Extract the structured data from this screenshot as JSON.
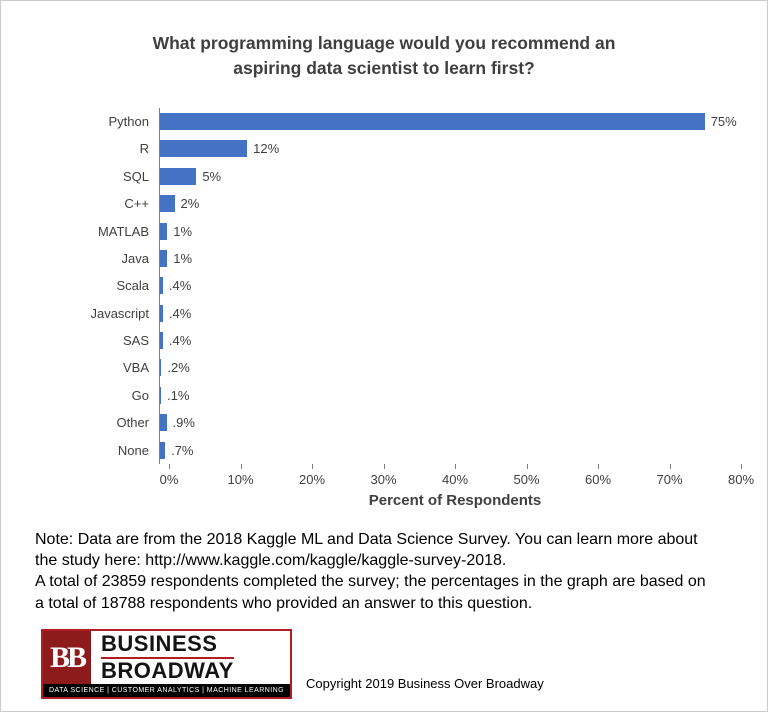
{
  "title": {
    "line1": "What programming language would you recommend an",
    "line2": "aspiring data scientist to learn first?"
  },
  "chart_data": {
    "type": "bar",
    "orientation": "horizontal",
    "title": "What programming language would you recommend an aspiring data scientist to learn first?",
    "categories": [
      "Python",
      "R",
      "SQL",
      "C++",
      "MATLAB",
      "Java",
      "Scala",
      "Javascript",
      "SAS",
      "VBA",
      "Go",
      "Other",
      "None"
    ],
    "values": [
      75,
      12,
      5,
      2,
      1,
      1,
      0.4,
      0.4,
      0.4,
      0.2,
      0.1,
      0.9,
      0.7
    ],
    "value_labels": [
      "75%",
      "12%",
      "5%",
      "2%",
      "1%",
      "1%",
      ".4%",
      ".4%",
      ".4%",
      ".2%",
      ".1%",
      ".9%",
      ".7%"
    ],
    "xlabel": "Percent of Respondents",
    "ylabel": "",
    "xlim": [
      0,
      80
    ],
    "xticks": [
      "0%",
      "10%",
      "20%",
      "30%",
      "40%",
      "50%",
      "60%",
      "70%",
      "80%"
    ],
    "grid": false,
    "legend": false,
    "bar_color": "#4472C4"
  },
  "note": {
    "lines": [
      "Note: Data are from the 2018 Kaggle ML and Data Science Survey. You can learn more about",
      "the study here: http://www.kaggle.com/kaggle/kaggle-survey-2018.",
      "A total of 23859 respondents completed the survey; the percentages in the graph are based on",
      "a total of 18788 respondents who provided an answer to this question."
    ]
  },
  "footer": {
    "logo": {
      "monogram": "BB",
      "name_line1": "BUSINESS",
      "name_line2": "BROADWAY",
      "tagline": "DATA SCIENCE  |  CUSTOMER ANALYTICS  |  MACHINE LEARNING",
      "brand_red": "#8e1b1c"
    },
    "copyright": "Copyright 2019 Business Over Broadway"
  }
}
